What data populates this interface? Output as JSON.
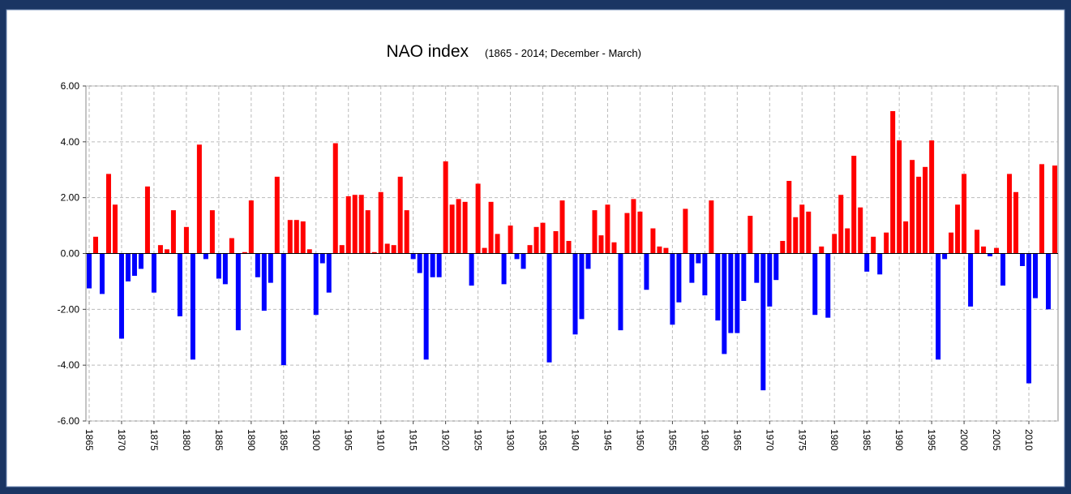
{
  "chart_data": {
    "type": "bar",
    "title": "NAO index",
    "subtitle": "(1865 - 2014; December - March)",
    "categories": [
      "1865",
      null,
      null,
      null,
      null,
      "1870",
      null,
      null,
      null,
      null,
      "1875",
      null,
      null,
      null,
      null,
      "1880",
      null,
      null,
      null,
      null,
      "1885",
      null,
      null,
      null,
      null,
      "1890",
      null,
      null,
      null,
      null,
      "1895",
      null,
      null,
      null,
      null,
      "1900",
      null,
      null,
      null,
      null,
      "1905",
      null,
      null,
      null,
      null,
      "1910",
      null,
      null,
      null,
      null,
      "1915",
      null,
      null,
      null,
      null,
      "1920",
      null,
      null,
      null,
      null,
      "1925",
      null,
      null,
      null,
      null,
      "1930",
      null,
      null,
      null,
      null,
      "1935",
      null,
      null,
      null,
      null,
      "1940",
      null,
      null,
      null,
      null,
      "1945",
      null,
      null,
      null,
      null,
      "1950",
      null,
      null,
      null,
      null,
      "1955",
      null,
      null,
      null,
      null,
      "1960",
      null,
      null,
      null,
      null,
      "1965",
      null,
      null,
      null,
      null,
      "1970",
      null,
      null,
      null,
      null,
      "1975",
      null,
      null,
      null,
      null,
      "1980",
      null,
      null,
      null,
      null,
      "1985",
      null,
      null,
      null,
      null,
      "1990",
      null,
      null,
      null,
      null,
      "1995",
      null,
      null,
      null,
      null,
      "2000",
      null,
      null,
      null,
      null,
      "2005",
      null,
      null,
      null,
      null,
      "2010",
      null,
      null,
      null,
      null
    ],
    "values": [
      -1.25,
      0.6,
      -1.45,
      2.85,
      1.75,
      -3.05,
      -1.0,
      -0.8,
      -0.55,
      2.4,
      -1.4,
      0.3,
      0.15,
      1.55,
      -2.25,
      0.95,
      -3.8,
      3.9,
      -0.2,
      1.55,
      -0.9,
      -1.1,
      0.55,
      -2.75,
      0.05,
      1.9,
      -0.85,
      -2.05,
      -1.05,
      2.75,
      -4.0,
      1.2,
      1.2,
      1.15,
      0.15,
      -2.2,
      -0.35,
      -1.4,
      3.95,
      0.3,
      2.05,
      2.1,
      2.1,
      1.55,
      0.05,
      2.2,
      0.35,
      0.3,
      2.75,
      1.55,
      -0.2,
      -0.7,
      -3.8,
      -0.85,
      -0.85,
      3.3,
      1.75,
      1.95,
      1.85,
      -1.15,
      2.5,
      0.2,
      1.85,
      0.7,
      -1.1,
      1.0,
      -0.2,
      -0.55,
      0.3,
      0.95,
      1.1,
      -3.9,
      0.8,
      1.9,
      0.45,
      -2.9,
      -2.35,
      -0.55,
      1.55,
      0.65,
      1.75,
      0.4,
      -2.75,
      1.45,
      1.95,
      1.5,
      -1.3,
      0.9,
      0.25,
      0.2,
      -2.55,
      -1.75,
      1.6,
      -1.05,
      -0.35,
      -1.5,
      1.9,
      -2.4,
      -3.6,
      -2.85,
      -2.85,
      -1.7,
      1.35,
      -1.05,
      -4.9,
      -1.9,
      -0.95,
      0.45,
      2.6,
      1.3,
      1.75,
      1.5,
      -2.2,
      0.25,
      -2.3,
      0.7,
      2.1,
      0.9,
      3.5,
      1.65,
      -0.65,
      0.6,
      -0.75,
      0.75,
      5.1,
      4.05,
      1.15,
      3.35,
      2.75,
      3.1,
      4.05,
      -3.8,
      -0.2,
      0.75,
      1.75,
      2.85,
      -1.9,
      0.85,
      0.25,
      -0.1,
      0.2,
      -1.15,
      2.85,
      2.2,
      -0.45,
      -4.65,
      -1.6,
      3.2,
      -2.0,
      3.15
    ],
    "positive_color": "#ff0000",
    "negative_color": "#0000ff",
    "ylim": [
      -6,
      6
    ],
    "yticks": [
      {
        "value": -6,
        "label": "-6.00"
      },
      {
        "value": -4,
        "label": "-4.00"
      },
      {
        "value": -2,
        "label": "-2.00"
      },
      {
        "value": 0,
        "label": "0.00"
      },
      {
        "value": 2,
        "label": "2.00"
      },
      {
        "value": 4,
        "label": "4.00"
      },
      {
        "value": 6,
        "label": "6.00"
      }
    ],
    "grid": true
  }
}
